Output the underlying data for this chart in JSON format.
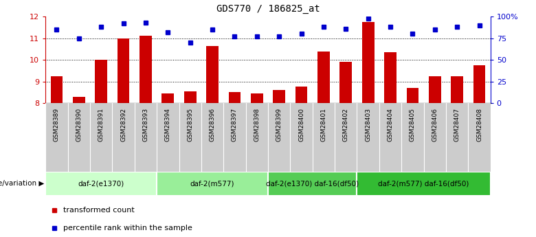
{
  "title": "GDS770 / 186825_at",
  "samples": [
    "GSM28389",
    "GSM28390",
    "GSM28391",
    "GSM28392",
    "GSM28393",
    "GSM28394",
    "GSM28395",
    "GSM28396",
    "GSM28397",
    "GSM28398",
    "GSM28399",
    "GSM28400",
    "GSM28401",
    "GSM28402",
    "GSM28403",
    "GSM28404",
    "GSM28405",
    "GSM28406",
    "GSM28407",
    "GSM28408"
  ],
  "transformed_count": [
    9.25,
    8.3,
    10.0,
    11.0,
    11.1,
    8.45,
    8.55,
    10.65,
    8.5,
    8.45,
    8.6,
    8.75,
    10.4,
    9.9,
    11.75,
    10.35,
    8.7,
    9.25,
    9.25,
    9.75
  ],
  "percentile_rank": [
    85,
    75,
    88,
    92,
    93,
    82,
    70,
    85,
    77,
    77,
    77,
    80,
    88,
    86,
    98,
    88,
    80,
    85,
    88,
    90
  ],
  "ylim_left": [
    8,
    12
  ],
  "ylim_right": [
    0,
    100
  ],
  "yticks_left": [
    8,
    9,
    10,
    11,
    12
  ],
  "yticks_right": [
    0,
    25,
    50,
    75,
    100
  ],
  "bar_color": "#cc0000",
  "dot_color": "#0000cc",
  "left_tick_color": "#cc0000",
  "right_tick_color": "#0000cc",
  "groups": [
    {
      "label": "daf-2(e1370)",
      "start": 0,
      "end": 5,
      "color": "#ccffcc"
    },
    {
      "label": "daf-2(m577)",
      "start": 5,
      "end": 10,
      "color": "#99ee99"
    },
    {
      "label": "daf-2(e1370) daf-16(df50)",
      "start": 10,
      "end": 14,
      "color": "#55cc55"
    },
    {
      "label": "daf-2(m577) daf-16(df50)",
      "start": 14,
      "end": 20,
      "color": "#33bb33"
    }
  ],
  "legend_label_bar": "transformed count",
  "legend_label_dot": "percentile rank within the sample",
  "genotype_label": "genotype/variation",
  "bg_color": "#ffffff",
  "xtick_bg": "#cccccc",
  "group_border_color": "#ffffff"
}
